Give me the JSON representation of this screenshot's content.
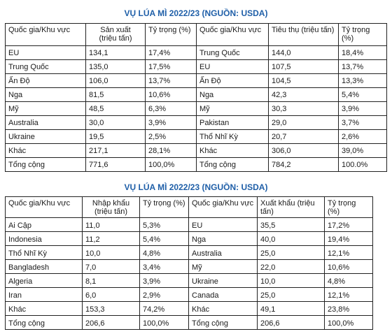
{
  "table1": {
    "title": "VỤ LÚA MÌ 2022/23 (NGUỒN: USDA)",
    "headers": [
      "Quốc gia/Khu vực",
      "Sản xuất\n(triệu tấn)",
      "Tỷ trọng (%)",
      "Quốc gia/Khu vực",
      "Tiêu thụ (triệu tấn)",
      "Tỷ trọng (%)"
    ],
    "rows": [
      [
        "EU",
        "134,1",
        "17,4%",
        "Trung Quốc",
        "144,0",
        "18,4%"
      ],
      [
        "Trung Quốc",
        "135,0",
        "17,5%",
        "EU",
        "107,5",
        "13,7%"
      ],
      [
        "Ấn Độ",
        "106,0",
        "13,7%",
        "Ấn Độ",
        "104,5",
        "13,3%"
      ],
      [
        "Nga",
        "81,5",
        "10,6%",
        "Nga",
        "42,3",
        "5,4%"
      ],
      [
        "Mỹ",
        "48,5",
        "6,3%",
        "Mỹ",
        "30,3",
        "3,9%"
      ],
      [
        "Australia",
        "30,0",
        "3,9%",
        "Pakistan",
        "29,0",
        "3,7%"
      ],
      [
        "Ukraine",
        "19,5",
        "2,5%",
        "Thổ Nhĩ Kỳ",
        "20,7",
        "2,6%"
      ],
      [
        "Khác",
        "217,1",
        "28,1%",
        "Khác",
        "306,0",
        "39,0%"
      ],
      [
        "Tổng cộng",
        "771,6",
        "100,0%",
        "Tổng cộng",
        "784,2",
        "100.0%"
      ]
    ]
  },
  "table2": {
    "title": "VỤ LÚA MÌ 2022/23 (NGUỒN: USDA)",
    "headers": [
      "Quốc gia/Khu vực",
      "Nhập khẩu\n(triệu tấn)",
      "Tỷ trọng (%)",
      "Quốc gia/Khu vực",
      "Xuất khẩu (triệu tấn)",
      "Tỷ trọng (%)"
    ],
    "rows": [
      [
        "Ai Cập",
        "11,0",
        "5,3%",
        "EU",
        "35,5",
        "17,2%"
      ],
      [
        "Indonesia",
        "11,2",
        "5,4%",
        "Nga",
        "40,0",
        "19,4%"
      ],
      [
        "Thổ Nhĩ Kỳ",
        "10,0",
        "4,8%",
        "Australia",
        "25,0",
        "12,1%"
      ],
      [
        "Bangladesh",
        "7,0",
        "3,4%",
        "Mỹ",
        "22,0",
        "10,6%"
      ],
      [
        "Algeria",
        "8,1",
        "3,9%",
        "Ukraine",
        "10,0",
        "4,8%"
      ],
      [
        "Iran",
        "6,0",
        "2,9%",
        "Canada",
        "25,0",
        "12,1%"
      ],
      [
        "Khác",
        "153,3",
        "74,2%",
        "Khác",
        "49,1",
        "23,8%"
      ],
      [
        "Tổng cộng",
        "206,6",
        "100,0%",
        "Tổng cộng",
        "206,6",
        "100,0%"
      ]
    ]
  }
}
